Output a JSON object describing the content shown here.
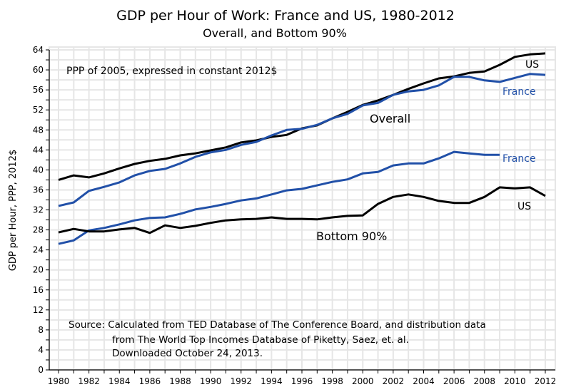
{
  "chart_data": {
    "type": "line",
    "title": "GDP per Hour of Work:  France and US, 1980-2012",
    "subtitle": "Overall, and Bottom 90%",
    "xlabel": "",
    "ylabel": "GDP per Hour, PPP, 2012$",
    "xlim": [
      1980,
      2012
    ],
    "ylim": [
      0,
      64
    ],
    "grid": true,
    "x_ticks": [
      1980,
      1982,
      1984,
      1986,
      1988,
      1990,
      1992,
      1994,
      1996,
      1998,
      2000,
      2002,
      2004,
      2006,
      2008,
      2010,
      2012
    ],
    "y_ticks": [
      0,
      4,
      8,
      12,
      16,
      20,
      24,
      28,
      32,
      36,
      40,
      44,
      48,
      52,
      56,
      60,
      64
    ],
    "colors": {
      "us": "#000000",
      "france": "#2150a8",
      "grid": "#e6e6e6"
    },
    "x": [
      1980,
      1981,
      1982,
      1983,
      1984,
      1985,
      1986,
      1987,
      1988,
      1989,
      1990,
      1991,
      1992,
      1993,
      1994,
      1995,
      1996,
      1997,
      1998,
      1999,
      2000,
      2001,
      2002,
      2003,
      2004,
      2005,
      2006,
      2007,
      2008,
      2009,
      2010,
      2011,
      2012
    ],
    "series": [
      {
        "name": "US Overall",
        "group": "overall",
        "country": "us",
        "values": [
          38.0,
          38.9,
          38.5,
          39.3,
          40.3,
          41.2,
          41.8,
          42.2,
          42.9,
          43.3,
          43.9,
          44.5,
          45.5,
          45.9,
          46.6,
          47.0,
          48.3,
          48.9,
          50.3,
          51.6,
          53.0,
          53.9,
          55.0,
          56.2,
          57.3,
          58.3,
          58.7,
          59.4,
          59.7,
          61.0,
          62.6,
          63.1,
          63.3
        ]
      },
      {
        "name": "France Overall",
        "group": "overall",
        "country": "france",
        "values": [
          32.8,
          33.5,
          35.8,
          36.6,
          37.5,
          38.9,
          39.8,
          40.2,
          41.3,
          42.6,
          43.5,
          44.0,
          45.0,
          45.6,
          46.9,
          48.0,
          48.2,
          49.0,
          50.3,
          51.2,
          52.9,
          53.4,
          55.0,
          55.7,
          56.0,
          56.9,
          58.6,
          58.6,
          57.9,
          57.6,
          58.4,
          59.2,
          59.0
        ]
      },
      {
        "name": "France Bottom 90%",
        "group": "bottom90",
        "country": "france",
        "values": [
          25.2,
          25.9,
          27.9,
          28.4,
          29.1,
          29.9,
          30.4,
          30.5,
          31.2,
          32.1,
          32.6,
          33.2,
          33.9,
          34.3,
          35.1,
          35.9,
          36.2,
          36.9,
          37.6,
          38.1,
          39.3,
          39.6,
          40.9,
          41.3,
          41.3,
          42.3,
          43.6,
          43.3,
          43.0,
          43.0,
          null,
          null,
          null
        ]
      },
      {
        "name": "US Bottom 90%",
        "group": "bottom90",
        "country": "us",
        "values": [
          27.5,
          28.2,
          27.7,
          27.7,
          28.1,
          28.4,
          27.4,
          28.9,
          28.4,
          28.8,
          29.4,
          29.9,
          30.1,
          30.2,
          30.5,
          30.2,
          30.2,
          30.1,
          30.5,
          30.8,
          30.9,
          33.2,
          34.6,
          35.1,
          34.6,
          33.8,
          33.4,
          33.4,
          34.6,
          36.5,
          36.3,
          36.5,
          34.8
        ]
      }
    ],
    "annotations": {
      "units_note": "PPP of 2005, expressed in constant 2012$",
      "overall_label": "Overall",
      "bottom90_label": "Bottom 90%",
      "us_overall_label": "US",
      "france_overall_label": "France",
      "france_bottom_label": "France",
      "us_bottom_label": "US",
      "source_line1": "Source:  Calculated from TED Database of The Conference Board, and distribution data",
      "source_line2": "from The World Top Incomes Database of Piketty, Saez, et. al.",
      "source_line3": "Downloaded October 24, 2013."
    }
  }
}
